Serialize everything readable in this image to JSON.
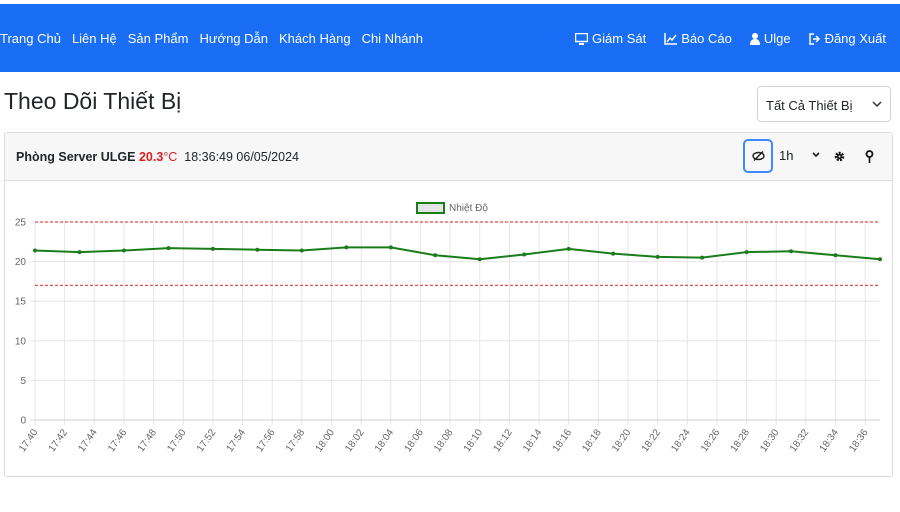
{
  "nav": {
    "left": [
      "Trang Chủ",
      "Liên Hệ",
      "Sản Phẩm",
      "Hướng Dẫn",
      "Khách Hàng",
      "Chi Nhánh"
    ],
    "right": [
      "Giám Sát",
      "Báo Cáo",
      "Ulge",
      "Đăng Xuất"
    ]
  },
  "page_title": "Theo Dõi Thiết Bị",
  "device_select": "Tất Cả Thiết Bị",
  "card": {
    "device_name": "Phòng Server ULGE",
    "temperature": "20.3",
    "unit": "°C",
    "timestamp": "18:36:49 06/05/2024",
    "range_select": "1h"
  },
  "chart_data": {
    "type": "line",
    "x": [
      "17:40",
      "17:43",
      "17:46",
      "17:49",
      "17:52",
      "17:55",
      "17:58",
      "18:01",
      "18:04",
      "18:07",
      "18:10",
      "18:13",
      "18:16",
      "18:19",
      "18:22",
      "18:25",
      "18:28",
      "18:31",
      "18:34",
      "18:37"
    ],
    "series": [
      {
        "name": "Nhiệt Độ",
        "color": "#1a7d1a",
        "values": [
          21.4,
          21.2,
          21.4,
          21.7,
          21.6,
          21.5,
          21.4,
          21.8,
          21.8,
          20.8,
          20.3,
          20.9,
          21.6,
          21.0,
          20.6,
          20.5,
          21.2,
          21.3,
          20.8,
          20.3
        ]
      }
    ],
    "thresholds": [
      25,
      17
    ],
    "threshold_color": "#d9534f",
    "xlim": [
      "17:40",
      "18:37"
    ],
    "xticks": [
      "17:40",
      "17:42",
      "17:44",
      "17:46",
      "17:48",
      "17:50",
      "17:52",
      "17:54",
      "17:56",
      "17:58",
      "18:00",
      "18:02",
      "18:04",
      "18:06",
      "18:08",
      "18:10",
      "18:12",
      "18:14",
      "18:16",
      "18:18",
      "18:20",
      "18:22",
      "18:24",
      "18:26",
      "18:28",
      "18:30",
      "18:32",
      "18:34",
      "18:36"
    ],
    "ylim": [
      0,
      25
    ],
    "yticks": [
      0,
      5,
      10,
      15,
      20,
      25
    ],
    "grid": true,
    "legend": "top"
  }
}
